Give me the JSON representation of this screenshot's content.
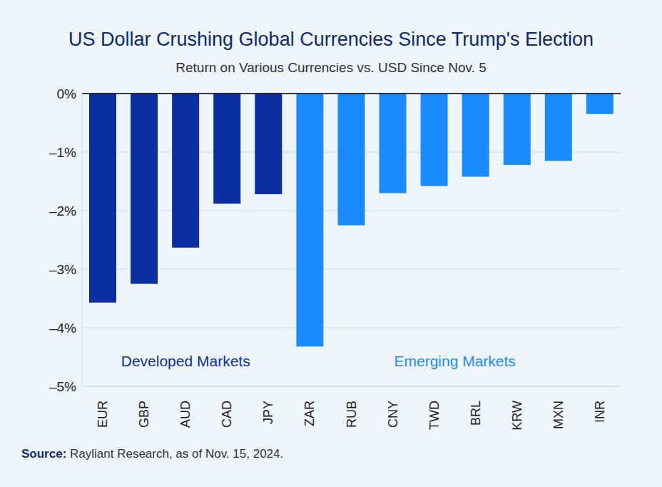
{
  "chart_data": {
    "type": "bar",
    "title": "US Dollar Crushing Global Currencies Since Trump's Election",
    "subtitle": "Return on Various Currencies vs. USD Since Nov. 5",
    "categories": [
      "EUR",
      "GBP",
      "AUD",
      "CAD",
      "JPY",
      "ZAR",
      "RUB",
      "CNY",
      "TWD",
      "BRL",
      "KRW",
      "MXN",
      "INR"
    ],
    "values": [
      -3.57,
      -3.25,
      -2.63,
      -1.88,
      -1.72,
      -4.32,
      -2.25,
      -1.7,
      -1.58,
      -1.42,
      -1.22,
      -1.15,
      -0.35
    ],
    "colors": [
      "#0b2fa0",
      "#0b2fa0",
      "#0b2fa0",
      "#0b2fa0",
      "#0b2fa0",
      "#1a8cff",
      "#1a8cff",
      "#1a8cff",
      "#1a8cff",
      "#1a8cff",
      "#1a8cff",
      "#1a8cff",
      "#1a8cff"
    ],
    "groups": [
      {
        "label": "Developed Markets",
        "categories": [
          "EUR",
          "GBP",
          "AUD",
          "CAD",
          "JPY"
        ]
      },
      {
        "label": "Emerging Markets",
        "categories": [
          "ZAR",
          "RUB",
          "CNY",
          "TWD",
          "BRL",
          "KRW",
          "MXN",
          "INR"
        ]
      }
    ],
    "ylim": [
      -5,
      0
    ],
    "yticks": [
      {
        "value": -5,
        "label": "–5%"
      },
      {
        "value": -4,
        "label": "–4%"
      },
      {
        "value": -3,
        "label": "–3%"
      },
      {
        "value": -2,
        "label": "–2%"
      },
      {
        "value": -1,
        "label": "–1%"
      },
      {
        "value": 0,
        "label": "0%"
      }
    ],
    "grid": true,
    "source": "Source: Rayliant Research, as of Nov. 15, 2024."
  }
}
